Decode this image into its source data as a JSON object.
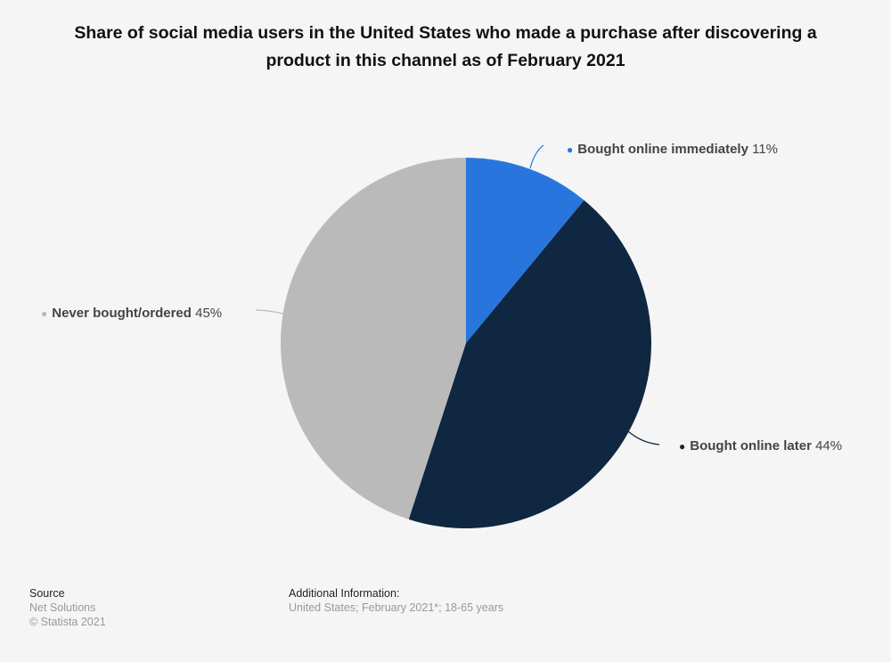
{
  "chart_data": {
    "type": "pie",
    "title": "Share of social media users in the United States who made a purchase after discovering a product in this channel as of February 2021",
    "slices": [
      {
        "label": "Bought online immediately",
        "value": 11,
        "display": "11%",
        "color": "#2876dd"
      },
      {
        "label": "Bought online later",
        "value": 44,
        "display": "44%",
        "color": "#0f2740"
      },
      {
        "label": "Never bought/ordered",
        "value": 45,
        "display": "45%",
        "color": "#bababa"
      }
    ],
    "start_angle": "top",
    "direction": "clockwise"
  },
  "footer": {
    "source_heading": "Source",
    "source_name": "Net Solutions",
    "copyright": "© Statista 2021",
    "info_heading": "Additional Information:",
    "info_text": "United States; February 2021*; 18-65 years"
  }
}
